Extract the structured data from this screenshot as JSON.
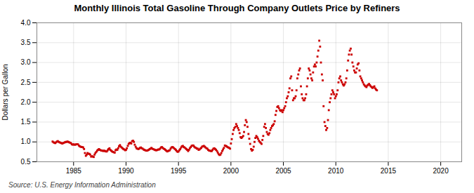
{
  "chart_data": {
    "type": "scatter",
    "title": "Monthly Illinois Total Gasoline Through Company Outlets Price by Refiners",
    "ylabel": "Dollars per Gallon",
    "source": "Source: U.S. Energy Information Administration",
    "color": "#cc0000",
    "marker": "square",
    "grid": true,
    "xlim": [
      1981.5,
      2022
    ],
    "ylim": [
      0.5,
      4.0
    ],
    "xticks": [
      1985,
      1990,
      1995,
      2000,
      2005,
      2010,
      2015,
      2020
    ],
    "yticks": [
      0.5,
      {
        "value": 1.0,
        "label": "1.0"
      },
      1.5,
      {
        "value": 2.0,
        "label": "2.0"
      },
      2.5,
      {
        "value": 3.0,
        "label": "3.0"
      },
      3.5,
      {
        "value": 4.0,
        "label": "4.0"
      }
    ],
    "x": [
      1983.0,
      1983.08,
      1983.17,
      1983.25,
      1983.33,
      1983.42,
      1983.5,
      1983.58,
      1983.67,
      1983.75,
      1983.83,
      1983.92,
      1984.0,
      1984.08,
      1984.17,
      1984.25,
      1984.33,
      1984.42,
      1984.5,
      1984.58,
      1984.67,
      1984.75,
      1984.83,
      1984.92,
      1985.0,
      1985.08,
      1985.17,
      1985.25,
      1985.33,
      1985.42,
      1985.5,
      1985.58,
      1985.67,
      1985.75,
      1985.83,
      1985.92,
      1986.0,
      1986.08,
      1986.17,
      1986.25,
      1986.33,
      1986.42,
      1986.5,
      1986.58,
      1986.67,
      1986.75,
      1986.83,
      1986.92,
      1987.0,
      1987.08,
      1987.17,
      1987.25,
      1987.33,
      1987.42,
      1987.5,
      1987.58,
      1987.67,
      1987.75,
      1987.83,
      1987.92,
      1988.0,
      1988.08,
      1988.17,
      1988.25,
      1988.33,
      1988.42,
      1988.5,
      1988.58,
      1988.67,
      1988.75,
      1988.83,
      1988.92,
      1989.0,
      1989.08,
      1989.17,
      1989.25,
      1989.33,
      1989.42,
      1989.5,
      1989.58,
      1989.67,
      1989.75,
      1989.83,
      1989.92,
      1990.0,
      1990.08,
      1990.17,
      1990.25,
      1990.33,
      1990.42,
      1990.5,
      1990.58,
      1990.67,
      1990.75,
      1990.83,
      1990.92,
      1991.0,
      1991.08,
      1991.17,
      1991.25,
      1991.33,
      1991.42,
      1991.5,
      1991.58,
      1991.67,
      1991.75,
      1991.83,
      1991.92,
      1992.0,
      1992.08,
      1992.17,
      1992.25,
      1992.33,
      1992.42,
      1992.5,
      1992.58,
      1992.67,
      1992.75,
      1992.83,
      1992.92,
      1993.0,
      1993.08,
      1993.17,
      1993.25,
      1993.33,
      1993.42,
      1993.5,
      1993.58,
      1993.67,
      1993.75,
      1993.83,
      1993.92,
      1994.0,
      1994.08,
      1994.17,
      1994.25,
      1994.33,
      1994.42,
      1994.5,
      1994.58,
      1994.67,
      1994.75,
      1994.83,
      1994.92,
      1995.0,
      1995.08,
      1995.17,
      1995.25,
      1995.33,
      1995.42,
      1995.5,
      1995.58,
      1995.67,
      1995.75,
      1995.83,
      1995.92,
      1996.0,
      1996.08,
      1996.17,
      1996.25,
      1996.33,
      1996.42,
      1996.5,
      1996.58,
      1996.67,
      1996.75,
      1996.83,
      1996.92,
      1997.0,
      1997.08,
      1997.17,
      1997.25,
      1997.33,
      1997.42,
      1997.5,
      1997.58,
      1997.67,
      1997.75,
      1997.83,
      1997.92,
      1998.0,
      1998.08,
      1998.17,
      1998.25,
      1998.33,
      1998.42,
      1998.5,
      1998.58,
      1998.67,
      1998.75,
      1998.83,
      1998.92,
      1999.0,
      1999.08,
      1999.17,
      1999.25,
      1999.33,
      1999.42,
      1999.5,
      1999.58,
      1999.67,
      1999.75,
      1999.83,
      1999.92,
      2000.0,
      2000.08,
      2000.17,
      2000.25,
      2000.33,
      2000.42,
      2000.5,
      2000.58,
      2000.67,
      2000.75,
      2000.83,
      2000.92,
      2001.0,
      2001.08,
      2001.17,
      2001.25,
      2001.33,
      2001.42,
      2001.5,
      2001.58,
      2001.67,
      2001.75,
      2001.83,
      2001.92,
      2002.0,
      2002.08,
      2002.17,
      2002.25,
      2002.33,
      2002.42,
      2002.5,
      2002.58,
      2002.67,
      2002.75,
      2002.83,
      2002.92,
      2003.0,
      2003.08,
      2003.17,
      2003.25,
      2003.33,
      2003.42,
      2003.5,
      2003.58,
      2003.67,
      2003.75,
      2003.83,
      2003.92,
      2004.0,
      2004.08,
      2004.17,
      2004.25,
      2004.33,
      2004.42,
      2004.5,
      2004.58,
      2004.67,
      2004.75,
      2004.83,
      2004.92,
      2005.0,
      2005.08,
      2005.17,
      2005.25,
      2005.33,
      2005.42,
      2005.5,
      2005.58,
      2005.67,
      2005.75,
      2005.83,
      2005.92,
      2006.0,
      2006.08,
      2006.17,
      2006.25,
      2006.33,
      2006.42,
      2006.5,
      2006.58,
      2006.67,
      2006.75,
      2006.83,
      2006.92,
      2007.0,
      2007.08,
      2007.17,
      2007.25,
      2007.33,
      2007.42,
      2007.5,
      2007.58,
      2007.67,
      2007.75,
      2007.83,
      2007.92,
      2008.0,
      2008.08,
      2008.17,
      2008.25,
      2008.33,
      2008.42,
      2008.5,
      2008.58,
      2008.67,
      2008.75,
      2008.83,
      2008.92,
      2009.0,
      2009.08,
      2009.17,
      2009.25,
      2009.33,
      2009.42,
      2009.5,
      2009.58,
      2009.67,
      2009.75,
      2009.83,
      2009.92,
      2010.0,
      2010.08,
      2010.17,
      2010.25,
      2010.33,
      2010.42,
      2010.5,
      2010.58,
      2010.67,
      2010.75,
      2010.83,
      2010.92,
      2011.0,
      2011.08,
      2011.17,
      2011.25,
      2011.33,
      2011.42,
      2011.5,
      2011.58,
      2011.67,
      2011.75,
      2011.83,
      2011.92,
      2012.0,
      2012.08,
      2012.17,
      2012.25,
      2012.33,
      2012.42,
      2012.5,
      2012.58,
      2012.67,
      2012.75,
      2012.83,
      2012.92,
      2013.0,
      2013.08,
      2013.17,
      2013.25,
      2013.33,
      2013.42,
      2013.5,
      2013.58,
      2013.67,
      2013.75,
      2013.83,
      2013.92
    ],
    "values": [
      1.01,
      0.99,
      0.98,
      0.97,
      0.99,
      1.01,
      1.02,
      1.0,
      0.99,
      0.98,
      0.97,
      0.96,
      0.97,
      0.98,
      0.99,
      1.0,
      1.0,
      1.01,
      1.0,
      0.99,
      0.98,
      0.97,
      0.94,
      0.93,
      0.94,
      0.93,
      0.93,
      0.94,
      0.94,
      0.94,
      0.91,
      0.89,
      0.88,
      0.87,
      0.87,
      0.86,
      0.82,
      0.72,
      0.65,
      0.68,
      0.72,
      0.7,
      0.7,
      0.68,
      0.63,
      0.64,
      0.63,
      0.62,
      0.68,
      0.72,
      0.75,
      0.78,
      0.8,
      0.82,
      0.8,
      0.79,
      0.78,
      0.78,
      0.77,
      0.78,
      0.77,
      0.76,
      0.76,
      0.79,
      0.82,
      0.84,
      0.8,
      0.78,
      0.76,
      0.75,
      0.74,
      0.73,
      0.79,
      0.81,
      0.8,
      0.84,
      0.89,
      0.92,
      0.88,
      0.86,
      0.84,
      0.82,
      0.81,
      0.79,
      0.8,
      0.84,
      0.9,
      0.95,
      0.97,
      0.98,
      0.96,
      1.02,
      1.03,
      1.0,
      0.93,
      0.88,
      0.84,
      0.83,
      0.82,
      0.83,
      0.85,
      0.86,
      0.84,
      0.83,
      0.81,
      0.8,
      0.79,
      0.78,
      0.78,
      0.79,
      0.8,
      0.82,
      0.83,
      0.85,
      0.83,
      0.82,
      0.81,
      0.8,
      0.79,
      0.79,
      0.8,
      0.81,
      0.81,
      0.83,
      0.86,
      0.87,
      0.85,
      0.83,
      0.82,
      0.8,
      0.78,
      0.76,
      0.77,
      0.78,
      0.79,
      0.83,
      0.86,
      0.87,
      0.86,
      0.84,
      0.82,
      0.8,
      0.77,
      0.75,
      0.76,
      0.79,
      0.82,
      0.86,
      0.89,
      0.9,
      0.87,
      0.86,
      0.84,
      0.82,
      0.8,
      0.77,
      0.8,
      0.84,
      0.87,
      0.9,
      0.91,
      0.91,
      0.88,
      0.86,
      0.85,
      0.83,
      0.83,
      0.8,
      0.81,
      0.83,
      0.85,
      0.88,
      0.89,
      0.9,
      0.88,
      0.86,
      0.84,
      0.83,
      0.8,
      0.78,
      0.78,
      0.77,
      0.77,
      0.8,
      0.83,
      0.84,
      0.82,
      0.8,
      0.77,
      0.73,
      0.69,
      0.67,
      0.68,
      0.72,
      0.77,
      0.81,
      0.85,
      0.91,
      0.9,
      0.89,
      0.87,
      0.86,
      0.85,
      0.83,
      0.96,
      1.07,
      1.2,
      1.3,
      1.35,
      1.38,
      1.45,
      1.4,
      1.35,
      1.3,
      1.22,
      1.12,
      1.1,
      1.12,
      1.15,
      1.25,
      1.42,
      1.55,
      1.5,
      1.38,
      1.2,
      1.08,
      0.95,
      0.82,
      0.78,
      0.8,
      0.88,
      1.0,
      1.1,
      1.15,
      1.12,
      1.08,
      1.03,
      1.0,
      0.98,
      0.95,
      1.05,
      1.15,
      1.38,
      1.45,
      1.35,
      1.25,
      1.2,
      1.18,
      1.22,
      1.3,
      1.35,
      1.4,
      1.42,
      1.45,
      1.52,
      1.68,
      1.78,
      1.88,
      1.9,
      1.85,
      1.8,
      1.78,
      1.8,
      1.75,
      1.8,
      1.85,
      1.9,
      2.0,
      2.1,
      2.15,
      2.25,
      2.35,
      2.6,
      2.65,
      2.3,
      2.05,
      2.1,
      2.1,
      2.15,
      2.3,
      2.6,
      2.7,
      2.8,
      2.85,
      2.4,
      2.2,
      2.1,
      2.05,
      2.05,
      2.1,
      2.2,
      2.4,
      2.6,
      2.85,
      2.8,
      2.7,
      2.6,
      2.55,
      2.75,
      2.9,
      2.95,
      2.9,
      3.0,
      3.15,
      3.3,
      3.55,
      3.4,
      3.0,
      2.7,
      2.55,
      1.9,
      1.5,
      1.4,
      1.3,
      1.35,
      1.55,
      1.8,
      2.0,
      2.1,
      2.2,
      2.3,
      2.25,
      2.2,
      2.1,
      2.15,
      2.2,
      2.3,
      2.5,
      2.6,
      2.65,
      2.55,
      2.5,
      2.45,
      2.42,
      2.45,
      2.5,
      2.6,
      2.8,
      3.05,
      3.2,
      3.3,
      3.35,
      3.2,
      3.0,
      2.9,
      2.8,
      2.75,
      2.75,
      2.85,
      2.95,
      2.98,
      2.8,
      2.65,
      2.6,
      2.55,
      2.5,
      2.45,
      2.42,
      2.4,
      2.38,
      2.42,
      2.44,
      2.46,
      2.43,
      2.4,
      2.38,
      2.36,
      2.38,
      2.4,
      2.35,
      2.32,
      2.3
    ]
  }
}
